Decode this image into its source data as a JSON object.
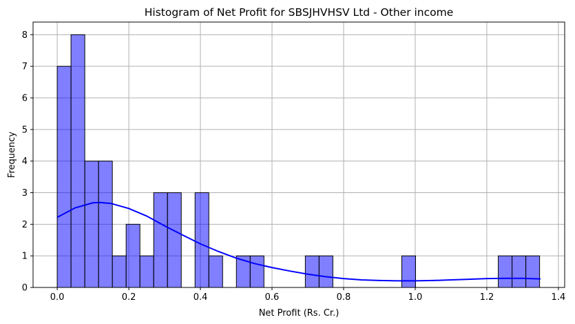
{
  "chart_data": {
    "type": "bar",
    "title": "Histogram of Net Profit for SBSJHVHSV Ltd - Other income",
    "xlabel": "Net Profit (Rs. Cr.)",
    "ylabel": "Frequency",
    "xlim": [
      -0.0675,
      1.4175
    ],
    "ylim": [
      0,
      8.4
    ],
    "xticks": [
      0.0,
      0.2,
      0.4,
      0.6,
      0.8,
      1.0,
      1.2,
      1.4
    ],
    "xtick_labels": [
      "0.0",
      "0.2",
      "0.4",
      "0.6",
      "0.8",
      "1.0",
      "1.2",
      "1.4"
    ],
    "yticks": [
      0,
      1,
      2,
      3,
      4,
      5,
      6,
      7,
      8
    ],
    "ytick_labels": [
      "0",
      "1",
      "2",
      "3",
      "4",
      "5",
      "6",
      "7",
      "8"
    ],
    "grid": true,
    "bar_color": "#0000ff",
    "bar_opacity": 0.5,
    "kde_color": "#0000ff",
    "bins": {
      "start": 0.0,
      "width": 0.0385,
      "counts": [
        7,
        8,
        4,
        4,
        1,
        2,
        1,
        3,
        3,
        0,
        3,
        1,
        0,
        1,
        1,
        0,
        0,
        0,
        1,
        1,
        0,
        0,
        0,
        0,
        0,
        1,
        0,
        0,
        0,
        0,
        0,
        0,
        1,
        1,
        1
      ]
    },
    "kde": {
      "x": [
        0.0,
        0.05,
        0.1,
        0.12,
        0.15,
        0.2,
        0.25,
        0.3,
        0.35,
        0.4,
        0.45,
        0.5,
        0.55,
        0.6,
        0.65,
        0.7,
        0.75,
        0.8,
        0.85,
        0.9,
        0.95,
        1.0,
        1.05,
        1.1,
        1.15,
        1.2,
        1.25,
        1.3,
        1.35
      ],
      "y": [
        2.22,
        2.52,
        2.68,
        2.69,
        2.66,
        2.5,
        2.26,
        1.95,
        1.66,
        1.38,
        1.14,
        0.93,
        0.76,
        0.63,
        0.52,
        0.42,
        0.34,
        0.28,
        0.24,
        0.22,
        0.21,
        0.21,
        0.22,
        0.24,
        0.26,
        0.28,
        0.29,
        0.29,
        0.27
      ]
    }
  }
}
